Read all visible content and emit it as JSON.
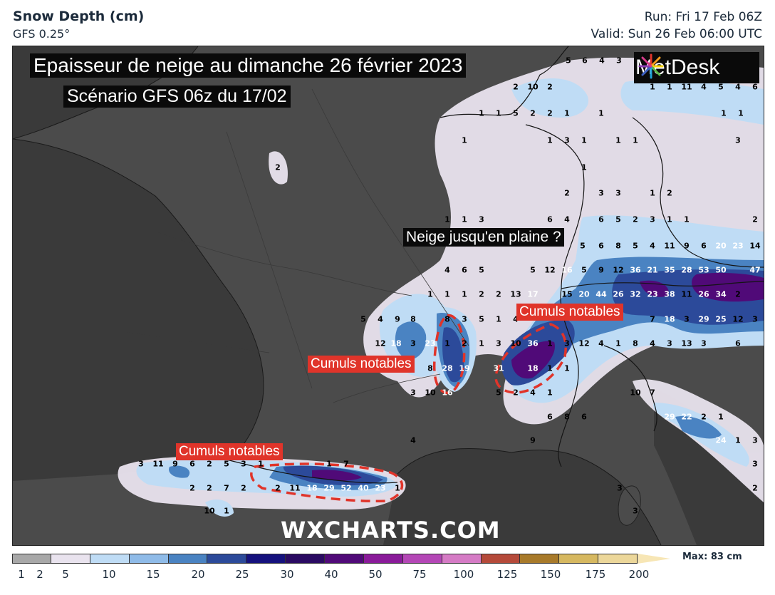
{
  "header": {
    "product_title": "Snow Depth (cm)",
    "model": "GFS 0.25°",
    "run": "Run: Fri 17 Feb 06Z",
    "valid": "Valid: Sun 26 Feb 06:00 UTC"
  },
  "overlay": {
    "title_line1": "Epaisseur de neige au dimanche 26 février 2023",
    "title_line2": "Scénario GFS 06z du 17/02",
    "question": "Neige jusqu'en plaine ?",
    "cumul1": "Cumuls notables",
    "cumul2": "Cumuls notables",
    "cumul3": "Cumuls notables",
    "logo": "MetDesk",
    "watermark": "WXCHARTS.COM"
  },
  "colors": {
    "land": "#4b4b4b",
    "sea": "#3a3a3a",
    "highlight": "#e0342a"
  },
  "values": [
    {
      "t": "5"
    },
    {
      "t": "6"
    },
    {
      "t": "4"
    },
    {
      "t": "3"
    },
    {
      "t": "2"
    },
    {
      "t": "10"
    },
    {
      "t": "2"
    },
    {
      "t": "1"
    },
    {
      "t": "1"
    },
    {
      "t": "11"
    },
    {
      "t": "4"
    },
    {
      "t": "5"
    },
    {
      "t": "4"
    },
    {
      "t": "6"
    },
    {
      "t": "1"
    },
    {
      "t": "1"
    },
    {
      "t": "5"
    },
    {
      "t": "2"
    },
    {
      "t": "2"
    },
    {
      "t": "1"
    },
    {
      "t": "1"
    },
    {
      "t": "1"
    },
    {
      "t": "1"
    },
    {
      "t": "1"
    },
    {
      "t": "1"
    },
    {
      "t": "3"
    },
    {
      "t": "1"
    },
    {
      "t": "1"
    },
    {
      "t": "1"
    },
    {
      "t": "3"
    },
    {
      "t": "2"
    },
    {
      "t": "1"
    },
    {
      "t": "2"
    },
    {
      "t": "3"
    },
    {
      "t": "3"
    },
    {
      "t": "1"
    },
    {
      "t": "2"
    },
    {
      "t": "1"
    },
    {
      "t": "1"
    },
    {
      "t": "3"
    },
    {
      "t": "6"
    },
    {
      "t": "4"
    },
    {
      "t": "6"
    },
    {
      "t": "5"
    },
    {
      "t": "2"
    },
    {
      "t": "3"
    },
    {
      "t": "1"
    },
    {
      "t": "1"
    },
    {
      "t": "2"
    },
    {
      "t": "5"
    },
    {
      "t": "6"
    },
    {
      "t": "8"
    },
    {
      "t": "5"
    },
    {
      "t": "4"
    },
    {
      "t": "11"
    },
    {
      "t": "9"
    },
    {
      "t": "6"
    },
    {
      "t": "20"
    },
    {
      "t": "23"
    },
    {
      "t": "14"
    },
    {
      "t": "4"
    },
    {
      "t": "6"
    },
    {
      "t": "5"
    },
    {
      "t": "5"
    },
    {
      "t": "12"
    },
    {
      "t": "16"
    },
    {
      "t": "5"
    },
    {
      "t": "9"
    },
    {
      "t": "12"
    },
    {
      "t": "36"
    },
    {
      "t": "21"
    },
    {
      "t": "35"
    },
    {
      "t": "28"
    },
    {
      "t": "53"
    },
    {
      "t": "50"
    },
    {
      "t": "47"
    },
    {
      "t": "1"
    },
    {
      "t": "1"
    },
    {
      "t": "1"
    },
    {
      "t": "2"
    },
    {
      "t": "2"
    },
    {
      "t": "13"
    },
    {
      "t": "17"
    },
    {
      "t": "15"
    },
    {
      "t": "20"
    },
    {
      "t": "44"
    },
    {
      "t": "26"
    },
    {
      "t": "32"
    },
    {
      "t": "23"
    },
    {
      "t": "38"
    },
    {
      "t": "11"
    },
    {
      "t": "26"
    },
    {
      "t": "34"
    },
    {
      "t": "2"
    },
    {
      "t": "5"
    },
    {
      "t": "4"
    },
    {
      "t": "9"
    },
    {
      "t": "8"
    },
    {
      "t": "8"
    },
    {
      "t": "3"
    },
    {
      "t": "5"
    },
    {
      "t": "1"
    },
    {
      "t": "4"
    },
    {
      "t": "7"
    },
    {
      "t": "18"
    },
    {
      "t": "3"
    },
    {
      "t": "29"
    },
    {
      "t": "25"
    },
    {
      "t": "12"
    },
    {
      "t": "3"
    },
    {
      "t": "12"
    },
    {
      "t": "18"
    },
    {
      "t": "3"
    },
    {
      "t": "23"
    },
    {
      "t": "1"
    },
    {
      "t": "2"
    },
    {
      "t": "1"
    },
    {
      "t": "3"
    },
    {
      "t": "10"
    },
    {
      "t": "36"
    },
    {
      "t": "1"
    },
    {
      "t": "3"
    },
    {
      "t": "12"
    },
    {
      "t": "4"
    },
    {
      "t": "1"
    },
    {
      "t": "8"
    },
    {
      "t": "4"
    },
    {
      "t": "3"
    },
    {
      "t": "13"
    },
    {
      "t": "3"
    },
    {
      "t": "6"
    },
    {
      "t": "8"
    },
    {
      "t": "28"
    },
    {
      "t": "19"
    },
    {
      "t": "31"
    },
    {
      "t": "18"
    },
    {
      "t": "1"
    },
    {
      "t": "1"
    },
    {
      "t": "3"
    },
    {
      "t": "10"
    },
    {
      "t": "16"
    },
    {
      "t": "5"
    },
    {
      "t": "2"
    },
    {
      "t": "4"
    },
    {
      "t": "1"
    },
    {
      "t": "10"
    },
    {
      "t": "7"
    },
    {
      "t": "6"
    },
    {
      "t": "8"
    },
    {
      "t": "6"
    },
    {
      "t": "29"
    },
    {
      "t": "22"
    },
    {
      "t": "2"
    },
    {
      "t": "1"
    },
    {
      "t": "4"
    },
    {
      "t": "9"
    },
    {
      "t": "24"
    },
    {
      "t": "1"
    },
    {
      "t": "3"
    },
    {
      "t": "3"
    },
    {
      "t": "11"
    },
    {
      "t": "9"
    },
    {
      "t": "6"
    },
    {
      "t": "2"
    },
    {
      "t": "5"
    },
    {
      "t": "3"
    },
    {
      "t": "1"
    },
    {
      "t": "1"
    },
    {
      "t": "7"
    },
    {
      "t": "3"
    },
    {
      "t": "2"
    },
    {
      "t": "2"
    },
    {
      "t": "7"
    },
    {
      "t": "2"
    },
    {
      "t": "2"
    },
    {
      "t": "11"
    },
    {
      "t": "18"
    },
    {
      "t": "29"
    },
    {
      "t": "52"
    },
    {
      "t": "40"
    },
    {
      "t": "23"
    },
    {
      "t": "1"
    },
    {
      "t": "2"
    },
    {
      "t": "10"
    },
    {
      "t": "1"
    },
    {
      "t": "3"
    },
    {
      "t": "3"
    }
  ],
  "scale": {
    "ticks": [
      "1",
      "2",
      "5",
      "10",
      "15",
      "20",
      "25",
      "30",
      "40",
      "50",
      "75",
      "100",
      "125",
      "150",
      "175",
      "200"
    ],
    "max_label": "Max: 83 cm",
    "colors": [
      "#a8a8a8",
      "#e9e3ee",
      "#bfdcf5",
      "#8fbbe8",
      "#4a83c2",
      "#2c4a9a",
      "#15117d",
      "#2a0a62",
      "#500a78",
      "#8a1b9a",
      "#b447b6",
      "#d57bc5",
      "#b54a3a",
      "#a87a2a",
      "#d6b860",
      "#ecd79a"
    ]
  }
}
